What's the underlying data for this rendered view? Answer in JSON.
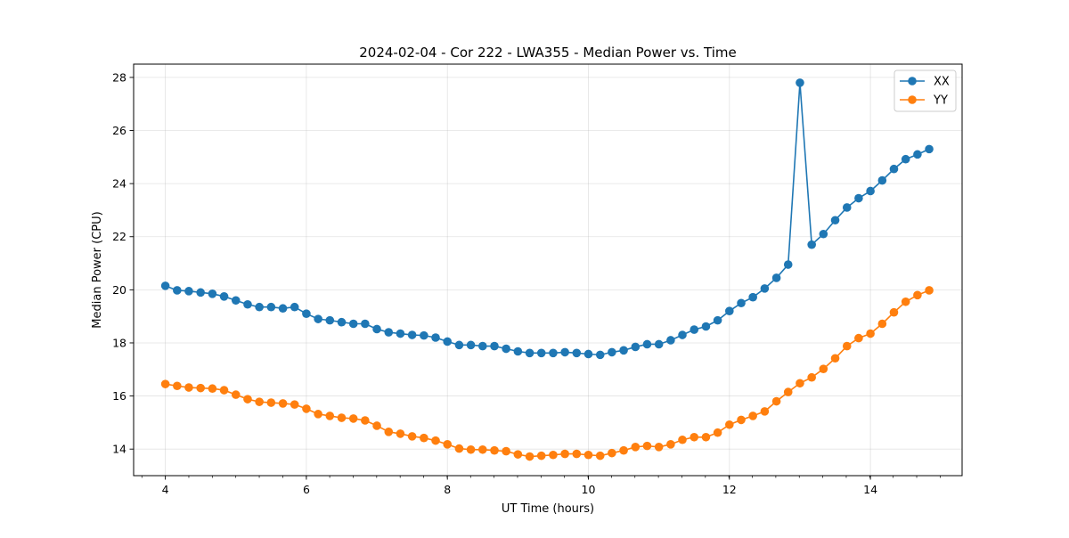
{
  "chart_data": {
    "type": "line",
    "title": "2024-02-04 - Cor 222 - LWA355 - Median Power vs. Time",
    "xlabel": "UT Time (hours)",
    "ylabel": "Median Power (CPU)",
    "xlim": [
      3.55,
      15.3
    ],
    "ylim": [
      13.0,
      28.5
    ],
    "xticks": [
      4,
      6,
      8,
      10,
      12,
      14
    ],
    "xtick_labels": [
      "4",
      "6",
      "8",
      "10",
      "12",
      "14"
    ],
    "xminor_step": 0.333,
    "yticks": [
      14,
      16,
      18,
      20,
      22,
      24,
      26,
      28
    ],
    "ytick_labels": [
      "14",
      "16",
      "18",
      "20",
      "22",
      "24",
      "26",
      "28"
    ],
    "grid": true,
    "legend_position": "top-right",
    "x": [
      4.0,
      4.167,
      4.333,
      4.5,
      4.667,
      4.833,
      5.0,
      5.167,
      5.333,
      5.5,
      5.667,
      5.833,
      6.0,
      6.167,
      6.333,
      6.5,
      6.667,
      6.833,
      7.0,
      7.167,
      7.333,
      7.5,
      7.667,
      7.833,
      8.0,
      8.167,
      8.333,
      8.5,
      8.667,
      8.833,
      9.0,
      9.167,
      9.333,
      9.5,
      9.667,
      9.833,
      10.0,
      10.167,
      10.333,
      10.5,
      10.667,
      10.833,
      11.0,
      11.167,
      11.333,
      11.5,
      11.667,
      11.833,
      12.0,
      12.167,
      12.333,
      12.5,
      12.667,
      12.833,
      13.0,
      13.167,
      13.333,
      13.5,
      13.667,
      13.833,
      14.0,
      14.167,
      14.333,
      14.5,
      14.667,
      14.833
    ],
    "series": [
      {
        "name": "XX",
        "color": "#1f77b4",
        "values": [
          20.15,
          19.98,
          19.95,
          19.9,
          19.85,
          19.75,
          19.6,
          19.45,
          19.35,
          19.35,
          19.3,
          19.35,
          19.1,
          18.9,
          18.85,
          18.78,
          18.72,
          18.72,
          18.52,
          18.4,
          18.35,
          18.3,
          18.28,
          18.2,
          18.05,
          17.92,
          17.92,
          17.88,
          17.88,
          17.78,
          17.68,
          17.62,
          17.62,
          17.62,
          17.65,
          17.62,
          17.58,
          17.55,
          17.65,
          17.72,
          17.85,
          17.95,
          17.95,
          18.1,
          18.3,
          18.5,
          18.62,
          18.85,
          19.2,
          19.5,
          19.72,
          20.05,
          20.45,
          20.95,
          27.8,
          21.7,
          22.1,
          22.62,
          23.1,
          23.45,
          23.72,
          24.12,
          24.55,
          24.92,
          25.1,
          25.3
        ]
      },
      {
        "name": "YY",
        "color": "#ff7f0e",
        "values": [
          16.45,
          16.38,
          16.32,
          16.3,
          16.28,
          16.22,
          16.05,
          15.88,
          15.78,
          15.75,
          15.72,
          15.68,
          15.52,
          15.32,
          15.25,
          15.18,
          15.15,
          15.08,
          14.88,
          14.65,
          14.58,
          14.48,
          14.42,
          14.32,
          14.18,
          14.02,
          13.98,
          13.98,
          13.95,
          13.92,
          13.8,
          13.72,
          13.75,
          13.78,
          13.82,
          13.82,
          13.78,
          13.75,
          13.85,
          13.95,
          14.08,
          14.12,
          14.08,
          14.18,
          14.35,
          14.45,
          14.45,
          14.62,
          14.92,
          15.1,
          15.25,
          15.42,
          15.8,
          16.15,
          16.48,
          16.7,
          17.02,
          17.42,
          17.88,
          18.18,
          18.35,
          18.72,
          19.15,
          19.55,
          19.8,
          19.98
        ]
      }
    ]
  }
}
